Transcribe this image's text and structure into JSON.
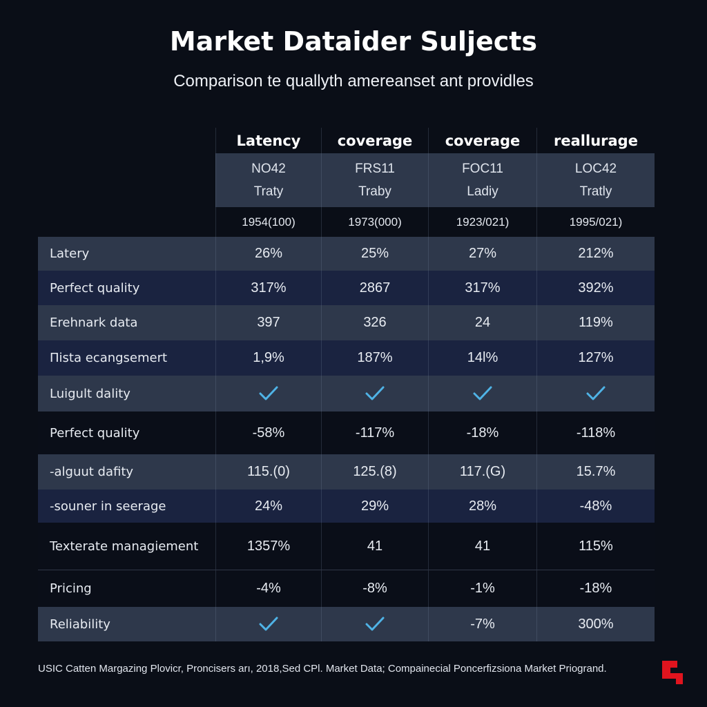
{
  "title": "Market Dataider Suljects",
  "subtitle": "Comparison te quallyth amereanset ant providles",
  "columns": [
    {
      "header": "Latency",
      "code": "NO42",
      "type": "Traty",
      "year": "1954(100)"
    },
    {
      "header": "coverage",
      "code": "FRS11",
      "type": "Traby",
      "year": "1973(000)"
    },
    {
      "header": "coverage",
      "code": "FOC11",
      "type": "Ladiy",
      "year": "1923/021)"
    },
    {
      "header": "reallurage",
      "code": "LOC42",
      "type": "Tratly",
      "year": "1995/021)"
    }
  ],
  "rows": [
    {
      "label": "Latery",
      "style": "light",
      "h": 0,
      "values": [
        "26%",
        "25%",
        "27%",
        "212%"
      ]
    },
    {
      "label": "Perfect quality",
      "style": "navy",
      "h": 1,
      "values": [
        "317%",
        "2867",
        "317%",
        "392%"
      ]
    },
    {
      "label": "Erehnark data",
      "style": "light",
      "h": 2,
      "values": [
        "397",
        "326",
        "24",
        "119%"
      ]
    },
    {
      "label": "Πista ecangsemert",
      "style": "navy",
      "h": 3,
      "values": [
        "1,9%",
        "187%",
        "14l%",
        "127%"
      ]
    },
    {
      "label": "Luigult dality",
      "style": "light",
      "h": 4,
      "values": [
        "check",
        "check",
        "check",
        "check"
      ]
    },
    {
      "label": "Perfect quality",
      "style": "dark",
      "h": 5,
      "values": [
        "-58%",
        "-117%",
        "-18%",
        "-118%"
      ]
    },
    {
      "label": "-alguut dafity",
      "style": "light",
      "h": 6,
      "values": [
        "115.(0)",
        "125.(8)",
        "117.(G)",
        "15.7%"
      ]
    },
    {
      "label": "-souner in seerage",
      "style": "navy",
      "h": 7,
      "values": [
        "24%",
        "29%",
        "28%",
        "-48%"
      ]
    },
    {
      "label": "Texterate managiement",
      "style": "dark",
      "h": 8,
      "values": [
        "1357%",
        "41",
        "41",
        "115%"
      ]
    },
    {
      "label": "Pricing",
      "style": "dark",
      "h": 9,
      "values": [
        "-4%",
        "-8%",
        "-1%",
        "-18%"
      ]
    },
    {
      "label": "Reliability",
      "style": "light",
      "h": 10,
      "values": [
        "check",
        "check",
        "-7%",
        "300%"
      ]
    }
  ],
  "check_color": "#4fb3e6",
  "footer": "USIC Catten Margazing Plovicr, Proncisers arı, 2018,Sed CPl. Market Data; Compainecial Poncerfizsiona Market Priogrand.",
  "logo_color": "#e0141e"
}
